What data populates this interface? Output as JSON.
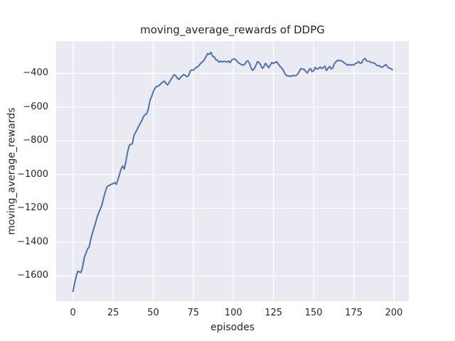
{
  "figure": {
    "title": "moving_average_rewards of DDPG",
    "xlabel": "episodes",
    "ylabel": "moving_average_rewards"
  },
  "chart_data": {
    "type": "line",
    "title": "moving_average_rewards of DDPG",
    "xlabel": "episodes",
    "ylabel": "moving_average_rewards",
    "grid": true,
    "legend": false,
    "xlim": [
      -10.5,
      209.3
    ],
    "ylim": [
      -1750.5,
      -209.3
    ],
    "x_ticks": [
      0,
      25,
      50,
      75,
      100,
      125,
      150,
      175,
      200
    ],
    "x_tick_labels": [
      "0",
      "25",
      "50",
      "75",
      "100",
      "125",
      "150",
      "175",
      "200"
    ],
    "y_ticks": [
      -400,
      -600,
      -800,
      -1000,
      -1200,
      -1400,
      -1600
    ],
    "y_tick_labels": [
      "−400",
      "−600",
      "−800",
      "−1000",
      "−1200",
      "−1400",
      "−1600"
    ],
    "style": {
      "figure_bg": "#ffffff",
      "axes_bg": "#eaeaf2",
      "grid_color": "#ffffff",
      "line_color": "#4c72b0",
      "text_color": "#262626"
    },
    "series": [
      {
        "name": "moving_average_rewards",
        "color": "#4c72b0",
        "x_start": 0,
        "x_step": 1,
        "values": [
          -1693,
          -1642,
          -1604,
          -1573,
          -1577,
          -1580,
          -1548,
          -1493,
          -1468,
          -1441,
          -1430,
          -1388,
          -1350,
          -1318,
          -1288,
          -1253,
          -1228,
          -1203,
          -1183,
          -1140,
          -1108,
          -1075,
          -1066,
          -1062,
          -1057,
          -1053,
          -1047,
          -1058,
          -1030,
          -998,
          -967,
          -949,
          -967,
          -918,
          -868,
          -828,
          -820,
          -817,
          -768,
          -750,
          -732,
          -713,
          -694,
          -678,
          -654,
          -645,
          -638,
          -608,
          -558,
          -538,
          -509,
          -489,
          -479,
          -476,
          -469,
          -459,
          -451,
          -446,
          -461,
          -468,
          -454,
          -438,
          -421,
          -408,
          -413,
          -428,
          -437,
          -424,
          -415,
          -407,
          -412,
          -420,
          -414,
          -388,
          -379,
          -381,
          -372,
          -364,
          -359,
          -347,
          -337,
          -329,
          -316,
          -299,
          -282,
          -287,
          -275,
          -299,
          -302,
          -318,
          -322,
          -333,
          -327,
          -333,
          -328,
          -330,
          -333,
          -327,
          -336,
          -319,
          -316,
          -315,
          -325,
          -336,
          -342,
          -348,
          -351,
          -346,
          -332,
          -325,
          -340,
          -368,
          -382,
          -372,
          -352,
          -331,
          -336,
          -350,
          -371,
          -360,
          -340,
          -354,
          -366,
          -349,
          -335,
          -341,
          -335,
          -331,
          -345,
          -358,
          -368,
          -379,
          -400,
          -412,
          -416,
          -415,
          -418,
          -412,
          -414,
          -413,
          -405,
          -389,
          -372,
          -374,
          -376,
          -388,
          -398,
          -381,
          -371,
          -390,
          -384,
          -365,
          -375,
          -371,
          -362,
          -372,
          -365,
          -358,
          -383,
          -369,
          -359,
          -374,
          -365,
          -341,
          -330,
          -322,
          -325,
          -324,
          -330,
          -337,
          -344,
          -352,
          -347,
          -352,
          -348,
          -351,
          -341,
          -339,
          -330,
          -340,
          -337,
          -318,
          -312,
          -326,
          -328,
          -330,
          -336,
          -337,
          -340,
          -349,
          -356,
          -354,
          -363,
          -362,
          -354,
          -348,
          -360,
          -369,
          -371,
          -378
        ]
      }
    ]
  }
}
